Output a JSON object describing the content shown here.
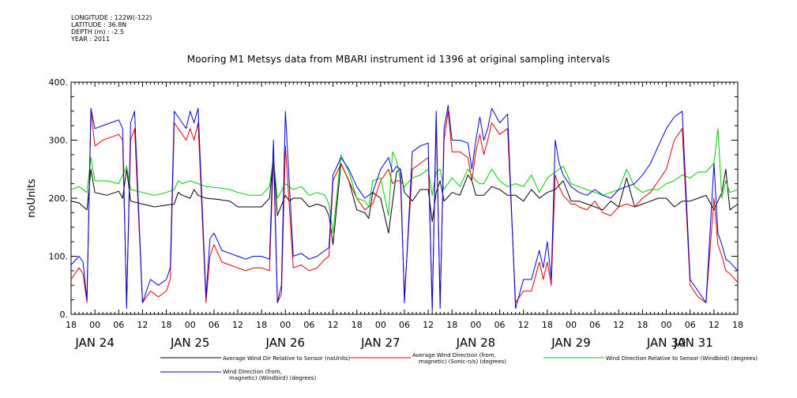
{
  "meta": {
    "longitude": "LONGITUDE : 122W(-122)",
    "latitude": "LATITUDE : 36.8N",
    "depth": "DEPTH (m) : -2.5",
    "year": "YEAR : 2011"
  },
  "chart_data": {
    "type": "line",
    "title": "Mooring M1 Metsys data from MBARI instrument id 1396 at original sampling intervals",
    "ylabel": "noUnits",
    "xlabel": "",
    "ylim": [
      0,
      400
    ],
    "yticks": [
      0,
      100,
      200,
      300,
      400
    ],
    "ytick_labels": [
      "0.",
      "100.",
      "200.",
      "300.",
      "400."
    ],
    "xlim": [
      18,
      186
    ],
    "xticks": [
      18,
      24,
      30,
      36,
      42,
      48,
      54,
      60,
      66,
      72,
      78,
      84,
      90,
      96,
      102,
      108,
      114,
      120,
      126,
      132,
      138,
      144,
      150,
      156,
      162,
      168,
      174,
      180,
      186
    ],
    "xtick_labels": [
      "18",
      "00",
      "06",
      "12",
      "18",
      "00",
      "06",
      "12",
      "18",
      "00",
      "06",
      "12",
      "18",
      "00",
      "06",
      "12",
      "18",
      "00",
      "06",
      "12",
      "18",
      "00",
      "06",
      "12",
      "18",
      "00",
      "06",
      "12",
      "18"
    ],
    "date_labels": [
      {
        "text": "JAN 24",
        "x": 24
      },
      {
        "text": "JAN 25",
        "x": 48
      },
      {
        "text": "JAN 26",
        "x": 72
      },
      {
        "text": "JAN 27",
        "x": 96
      },
      {
        "text": "JAN 28",
        "x": 120
      },
      {
        "text": "JAN 29",
        "x": 144
      },
      {
        "text": "JAN 30",
        "x": 168
      },
      {
        "text": "JAN 31",
        "x": 192
      }
    ],
    "x_unit": "hours from JAN 24 00:00 2011",
    "series": [
      {
        "name": "Average Wind Dir Relative to Sensor (noUnits)",
        "color": "#000000",
        "x": [
          18,
          20,
          22,
          23,
          24,
          27,
          30,
          31,
          32,
          33,
          36,
          39,
          42,
          44,
          45,
          46,
          48,
          49,
          50,
          52,
          55,
          58,
          60,
          63,
          66,
          68,
          69,
          70,
          72,
          73,
          74,
          76,
          78,
          80,
          82,
          83,
          84,
          86,
          88,
          90,
          92,
          93,
          94,
          96,
          98,
          100,
          101,
          102,
          104,
          106,
          108,
          109,
          110,
          111,
          112,
          114,
          116,
          118,
          119,
          120,
          121,
          122,
          124,
          126,
          128,
          130,
          132,
          134,
          136,
          138,
          140,
          142,
          144,
          146,
          148,
          150,
          152,
          154,
          156,
          158,
          160,
          162,
          164,
          166,
          168,
          170,
          172,
          174,
          176,
          178,
          180,
          182,
          183,
          184,
          186
        ],
        "y": [
          195,
          192,
          180,
          250,
          210,
          205,
          212,
          200,
          250,
          195,
          190,
          185,
          188,
          190,
          210,
          205,
          200,
          215,
          205,
          200,
          198,
          195,
          185,
          185,
          185,
          200,
          270,
          170,
          205,
          195,
          200,
          200,
          185,
          190,
          185,
          170,
          120,
          260,
          230,
          180,
          175,
          165,
          210,
          200,
          140,
          245,
          250,
          210,
          195,
          215,
          215,
          160,
          210,
          230,
          195,
          210,
          205,
          240,
          230,
          205,
          205,
          205,
          220,
          215,
          205,
          205,
          195,
          215,
          200,
          210,
          215,
          230,
          195,
          195,
          190,
          185,
          180,
          195,
          185,
          235,
          185,
          190,
          195,
          200,
          200,
          185,
          195,
          195,
          200,
          205,
          180,
          210,
          250,
          180,
          190
        ]
      },
      {
        "name": "Average Wind Direction (from, magnetic) (Sonic-n/s) (degrees)",
        "color": "#e00000",
        "x": [
          18,
          20,
          21,
          22,
          23,
          24,
          26,
          28,
          30,
          31,
          32,
          33,
          34,
          36,
          38,
          40,
          42,
          43,
          44,
          45,
          46,
          47,
          48,
          49,
          50,
          52,
          53,
          54,
          56,
          58,
          60,
          62,
          64,
          66,
          68,
          69,
          70,
          71,
          72,
          74,
          76,
          78,
          80,
          82,
          83,
          84,
          86,
          88,
          90,
          92,
          94,
          96,
          98,
          99,
          100,
          101,
          102,
          104,
          106,
          108,
          109,
          110,
          111,
          112,
          113,
          114,
          116,
          118,
          119,
          120,
          121,
          122,
          123,
          124,
          126,
          128,
          130,
          132,
          134,
          136,
          137,
          138,
          139,
          140,
          141,
          142,
          144,
          145,
          146,
          148,
          150,
          152,
          154,
          156,
          158,
          160,
          162,
          164,
          166,
          168,
          170,
          172,
          174,
          176,
          178,
          180,
          181,
          182,
          183,
          184,
          186
        ],
        "y": [
          60,
          80,
          70,
          20,
          350,
          290,
          300,
          305,
          310,
          300,
          20,
          300,
          320,
          20,
          40,
          30,
          40,
          60,
          330,
          320,
          310,
          300,
          320,
          300,
          330,
          20,
          100,
          120,
          90,
          85,
          80,
          75,
          80,
          80,
          75,
          275,
          20,
          35,
          290,
          80,
          85,
          75,
          80,
          95,
          100,
          230,
          260,
          230,
          200,
          180,
          190,
          230,
          250,
          225,
          230,
          230,
          30,
          250,
          260,
          270,
          10,
          330,
          20,
          300,
          350,
          280,
          280,
          270,
          230,
          280,
          310,
          275,
          300,
          330,
          310,
          320,
          20,
          40,
          40,
          90,
          60,
          90,
          50,
          240,
          220,
          205,
          190,
          190,
          185,
          180,
          195,
          175,
          170,
          185,
          190,
          185,
          200,
          210,
          230,
          250,
          300,
          320,
          50,
          30,
          20,
          200,
          120,
          100,
          75,
          70,
          55
        ]
      },
      {
        "name": "Wind Direction Relative to Sensor (Windbird) (degrees)",
        "color": "#00cc00",
        "x": [
          18,
          20,
          22,
          23,
          24,
          27,
          30,
          32,
          33,
          36,
          39,
          42,
          44,
          45,
          46,
          48,
          50,
          52,
          55,
          58,
          60,
          63,
          66,
          68,
          69,
          70,
          72,
          74,
          76,
          78,
          80,
          82,
          83,
          84,
          86,
          88,
          90,
          92,
          93,
          94,
          96,
          98,
          99,
          100,
          101,
          102,
          104,
          106,
          108,
          109,
          110,
          111,
          112,
          114,
          116,
          118,
          119,
          120,
          121,
          122,
          124,
          126,
          128,
          130,
          132,
          134,
          136,
          138,
          140,
          142,
          144,
          146,
          148,
          150,
          152,
          154,
          156,
          158,
          160,
          162,
          164,
          166,
          168,
          170,
          172,
          174,
          176,
          178,
          180,
          181,
          182,
          183,
          184,
          186
        ],
        "y": [
          215,
          220,
          210,
          270,
          230,
          230,
          225,
          255,
          215,
          210,
          205,
          210,
          215,
          230,
          225,
          230,
          225,
          220,
          218,
          215,
          210,
          205,
          205,
          220,
          270,
          200,
          225,
          215,
          220,
          205,
          210,
          205,
          190,
          140,
          275,
          245,
          200,
          195,
          185,
          230,
          235,
          170,
          280,
          265,
          230,
          220,
          235,
          240,
          250,
          205,
          245,
          250,
          215,
          235,
          220,
          250,
          240,
          230,
          225,
          225,
          250,
          230,
          220,
          225,
          220,
          240,
          210,
          235,
          245,
          255,
          225,
          220,
          215,
          210,
          205,
          210,
          215,
          250,
          220,
          210,
          215,
          215,
          225,
          230,
          240,
          235,
          245,
          245,
          260,
          320,
          200,
          230,
          210,
          215
        ]
      },
      {
        "name": "Wind Direction (from, magnetic) (Windbird) (degrees)",
        "color": "#0000e0",
        "x": [
          18,
          20,
          21,
          22,
          23,
          24,
          26,
          28,
          30,
          31,
          32,
          33,
          34,
          36,
          38,
          40,
          42,
          43,
          44,
          45,
          46,
          47,
          48,
          49,
          50,
          52,
          53,
          54,
          56,
          58,
          60,
          62,
          64,
          66,
          68,
          69,
          70,
          71,
          72,
          74,
          76,
          78,
          80,
          82,
          83,
          84,
          86,
          88,
          90,
          92,
          94,
          96,
          98,
          99,
          100,
          101,
          102,
          104,
          106,
          108,
          109,
          110,
          111,
          112,
          113,
          114,
          116,
          118,
          119,
          120,
          121,
          122,
          123,
          124,
          126,
          128,
          130,
          132,
          134,
          136,
          137,
          138,
          139,
          140,
          141,
          142,
          144,
          145,
          146,
          148,
          150,
          152,
          154,
          156,
          158,
          160,
          162,
          164,
          166,
          168,
          170,
          172,
          174,
          176,
          178,
          180,
          181,
          182,
          183,
          184,
          186
        ],
        "y": [
          85,
          100,
          90,
          25,
          355,
          320,
          325,
          330,
          335,
          320,
          10,
          330,
          350,
          20,
          60,
          50,
          60,
          80,
          350,
          340,
          330,
          320,
          350,
          330,
          355,
          30,
          130,
          140,
          110,
          105,
          100,
          95,
          100,
          100,
          95,
          300,
          20,
          50,
          350,
          100,
          105,
          95,
          100,
          110,
          115,
          240,
          270,
          250,
          220,
          200,
          210,
          250,
          270,
          245,
          255,
          250,
          20,
          280,
          290,
          295,
          5,
          350,
          10,
          320,
          360,
          300,
          300,
          295,
          250,
          300,
          340,
          300,
          320,
          355,
          330,
          345,
          10,
          60,
          60,
          110,
          80,
          125,
          60,
          300,
          260,
          240,
          220,
          215,
          210,
          205,
          215,
          205,
          200,
          215,
          220,
          225,
          240,
          260,
          290,
          320,
          340,
          350,
          60,
          40,
          20,
          260,
          140,
          120,
          95,
          90,
          75
        ]
      }
    ],
    "legend": [
      {
        "label_lines": [
          "Average Wind Dir Relative to Sensor (noUnits)"
        ],
        "color": "#000000"
      },
      {
        "label_lines": [
          "Average Wind Direction (from,",
          "magnetic) (Sonic-n/s) (degrees)"
        ],
        "color": "#e00000"
      },
      {
        "label_lines": [
          "Wind Direction Relative to Sensor (Windbird) (degrees)"
        ],
        "color": "#00cc00"
      },
      {
        "label_lines": [
          "Wind Direction (from,",
          "magnetic) (Windbird) (degrees)"
        ],
        "color": "#0000e0"
      }
    ],
    "grid": false,
    "legend_position": "bottom"
  }
}
